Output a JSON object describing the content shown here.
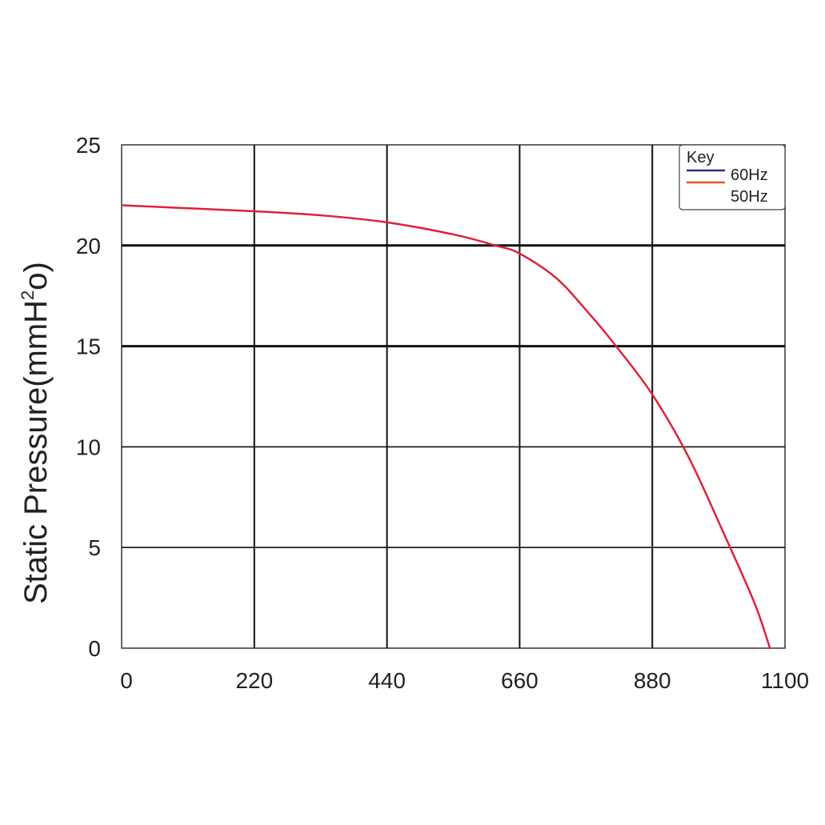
{
  "chart_data": {
    "type": "line",
    "title": "",
    "xlabel": "",
    "ylabel": "Static Pressure(mmH",
    "ylabel_sup": "2",
    "ylabel_tail": "o)",
    "xlim": [
      0,
      1100
    ],
    "ylim": [
      0,
      25
    ],
    "xticks": [
      0,
      220,
      440,
      660,
      880,
      1100
    ],
    "yticks": [
      0,
      5,
      10,
      15,
      20,
      25
    ],
    "xtick_labels": [
      "0",
      "220",
      "440",
      "660",
      "880",
      "1100"
    ],
    "ytick_labels": [
      "0",
      "5",
      "10",
      "15",
      "20",
      "25"
    ],
    "grid": true,
    "legend": {
      "title": "Key",
      "placement": "top-right",
      "entries": [
        {
          "label": "60Hz",
          "color": "#2b2f8f"
        },
        {
          "label": "50Hz",
          "color": "#e8531f"
        }
      ]
    },
    "series": [
      {
        "color": "#e0213a",
        "x": [
          0,
          110,
          220,
          330,
          440,
          550,
          620,
          660,
          720,
          770,
          820,
          880,
          940,
          1000,
          1050,
          1075
        ],
        "y": [
          22.0,
          21.85,
          21.7,
          21.5,
          21.15,
          20.55,
          20.0,
          19.6,
          18.4,
          16.8,
          15.0,
          12.6,
          9.5,
          5.6,
          2.2,
          0
        ]
      }
    ]
  }
}
